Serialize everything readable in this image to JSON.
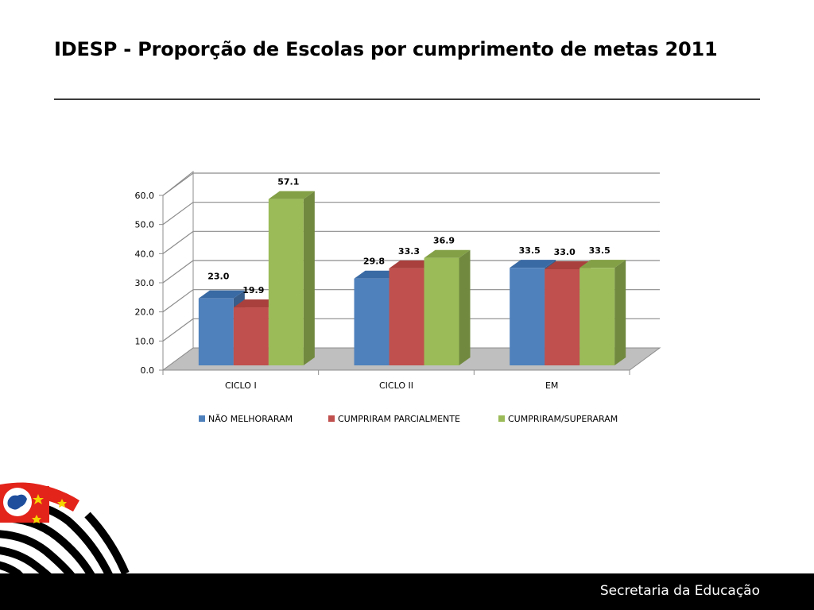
{
  "slide": {
    "title": "IDESP  - Proporção de Escolas por cumprimento de metas 2011",
    "footer": "Secretaria da Educação"
  },
  "colors": {
    "series": [
      "#4f81bd",
      "#c0504d",
      "#9bbb59"
    ],
    "series_dark": [
      "#385d8a",
      "#8c3836",
      "#71893f"
    ],
    "series_top": [
      "#3a6aa4",
      "#a9403d",
      "#83a046"
    ]
  },
  "chart_data": {
    "type": "bar",
    "categories": [
      "CICLO I",
      "CICLO II",
      "EM"
    ],
    "series": [
      {
        "name": "NÃO MELHORARAM",
        "values": [
          23.0,
          29.8,
          33.5
        ],
        "labels": [
          "23.0",
          "29.8",
          "33.5"
        ]
      },
      {
        "name": "CUMPRIRAM PARCIALMENTE",
        "values": [
          19.9,
          33.3,
          33.0
        ],
        "labels": [
          "19.9",
          "33.3",
          "33.0"
        ]
      },
      {
        "name": "CUMPRIRAM/SUPERARAM",
        "values": [
          57.1,
          36.9,
          33.5
        ],
        "labels": [
          "57.1",
          "36.9",
          "33.5"
        ]
      }
    ],
    "yticks": [
      "0.0",
      "10.0",
      "20.0",
      "30.0",
      "40.0",
      "50.0",
      "60.0"
    ],
    "ylim": [
      0,
      60
    ],
    "grid": true,
    "legend": "bottom",
    "style": "3d-clustered-column"
  }
}
